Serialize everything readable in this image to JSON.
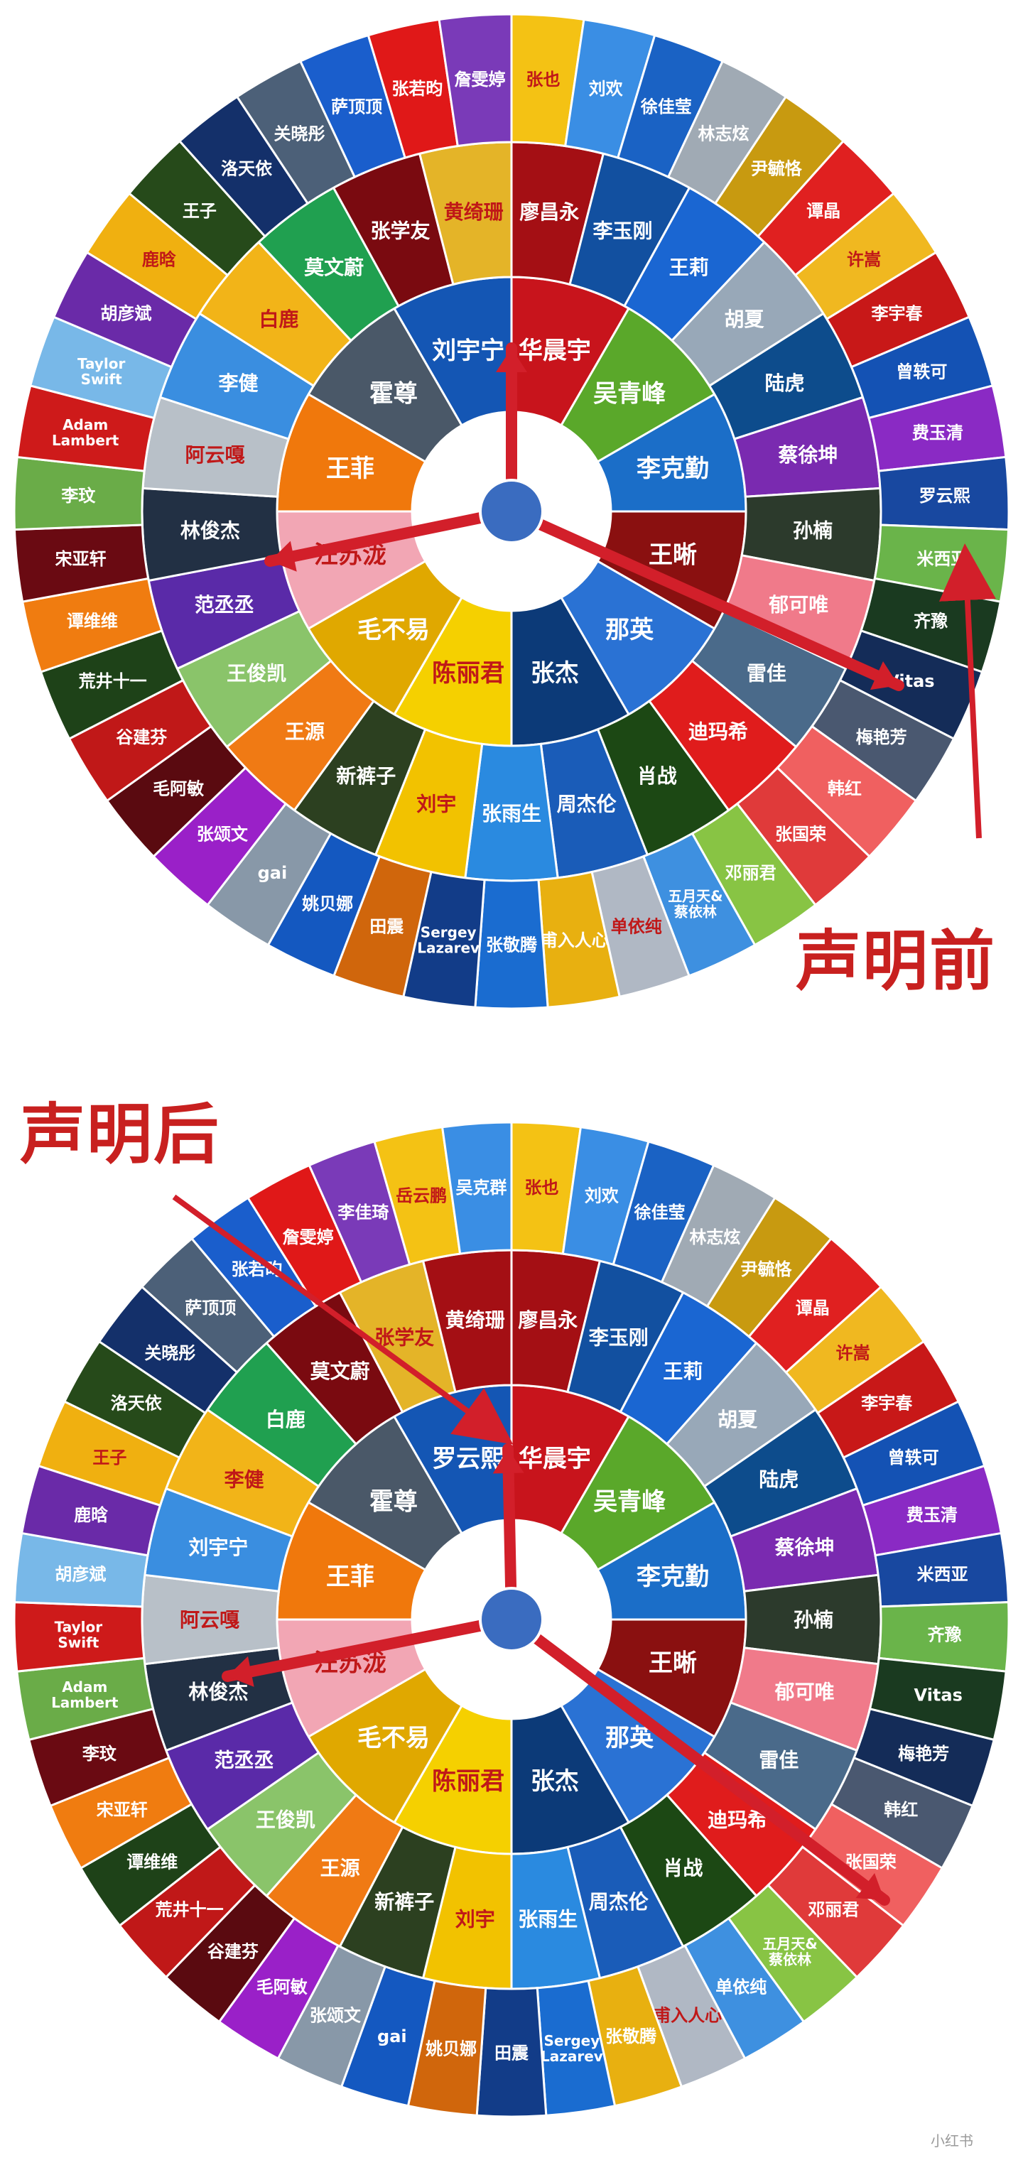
{
  "captions": {
    "before": "声明前",
    "after": "声明后"
  },
  "watermark": "小红书",
  "wheels": [
    {
      "id": "before",
      "rings": [
        [
          "华晨宇",
          "吴青峰",
          "李克勤",
          "王晰",
          "那英",
          "张杰",
          "陈丽君",
          "毛不易",
          "汪苏泷",
          "王菲",
          "霍尊",
          "刘宇宁"
        ],
        [
          "廖昌永",
          "李玉刚",
          "王莉",
          "胡夏",
          "陆虎",
          "蔡徐坤",
          "孙楠",
          "郁可唯",
          "雷佳",
          "迪玛希",
          "肖战",
          "周杰伦",
          "张雨生",
          "刘宇",
          "新裤子",
          "王源",
          "王俊凯",
          "范丞丞",
          "林俊杰",
          "阿云嘎",
          "李健",
          "白鹿",
          "莫文蔚",
          "张学友",
          "黄绮珊"
        ],
        [
          "张也",
          "刘欢",
          "徐佳莹",
          "林志炫",
          "尹毓恪",
          "谭晶",
          "许嵩",
          "李宇春",
          "曾轶可",
          "费玉清",
          "罗云熙",
          "米西亚",
          "齐豫",
          "Vitas",
          "梅艳芳",
          "韩红",
          "张国荣",
          "邓丽君",
          "五月天&\n蔡依林",
          "单依纯",
          "甫入人心",
          "张敬腾",
          "Sergey\nLazarev",
          "田震",
          "姚贝娜",
          "gai",
          "张颂文",
          "毛阿敏",
          "谷建芬",
          "荒井十一",
          "谭维维",
          "宋亚轩",
          "李玟",
          "Adam\nLambert",
          "Taylor\nSwift",
          "胡彦斌",
          "鹿晗",
          "王子",
          "洛天依",
          "关晓彤",
          "萨顶顶",
          "张若昀",
          "詹雯婷"
        ]
      ]
    },
    {
      "id": "after",
      "rings": [
        [
          "华晨宇",
          "吴青峰",
          "李克勤",
          "王晰",
          "那英",
          "张杰",
          "陈丽君",
          "毛不易",
          "汪苏泷",
          "王菲",
          "霍尊",
          "罗云熙"
        ],
        [
          "廖昌永",
          "李玉刚",
          "王莉",
          "胡夏",
          "陆虎",
          "蔡徐坤",
          "孙楠",
          "郁可唯",
          "雷佳",
          "迪玛希",
          "肖战",
          "周杰伦",
          "张雨生",
          "刘宇",
          "新裤子",
          "王源",
          "王俊凯",
          "范丞丞",
          "林俊杰",
          "阿云嘎",
          "刘宇宁",
          "李健",
          "白鹿",
          "莫文蔚",
          "张学友",
          "黄绮珊"
        ],
        [
          "张也",
          "刘欢",
          "徐佳莹",
          "林志炫",
          "尹毓恪",
          "谭晶",
          "许嵩",
          "李宇春",
          "曾轶可",
          "费玉清",
          "米西亚",
          "齐豫",
          "Vitas",
          "梅艳芳",
          "韩红",
          "张国荣",
          "邓丽君",
          "五月天&\n蔡依林",
          "单依纯",
          "甫入人心",
          "张敬腾",
          "Sergey\nLazarev",
          "田震",
          "姚贝娜",
          "gai",
          "张颂文",
          "毛阿敏",
          "谷建芬",
          "荒井十一",
          "谭维维",
          "宋亚轩",
          "李玟",
          "Adam\nLambert",
          "Taylor\nSwift",
          "胡彦斌",
          "鹿晗",
          "王子",
          "洛天依",
          "关晓彤",
          "萨顶顶",
          "张若昀",
          "詹雯婷",
          "李佳琦",
          "岳云鹏",
          "吴克群"
        ]
      ]
    }
  ],
  "colors": {
    "inner": [
      "#c8141c",
      "#5aa82a",
      "#1b6ec8",
      "#8a1010",
      "#2a72d4",
      "#0c3a78",
      "#f5d000",
      "#e0a800",
      "#f2a6b4",
      "#f0780c",
      "#4a5868",
      "#1456b4"
    ],
    "middle": [
      "#a40f14",
      "#1250a0",
      "#1a66d2",
      "#98a8b8",
      "#0d4c8c",
      "#7a2ab0",
      "#2c3a2c",
      "#f07a8a",
      "#4a6a8a",
      "#e01c1c",
      "#1c4814",
      "#1a5cb8",
      "#2a8ae0",
      "#f2c200",
      "#2c4020",
      "#f07a14",
      "#8ac46a",
      "#5a2aa8",
      "#223044",
      "#b8c0c8",
      "#3a8ee0",
      "#f2b418",
      "#20a050",
      "#7a0a10",
      "#e4b428"
    ],
    "outer": [
      "#f4c214",
      "#3a8ee4",
      "#1a62c4",
      "#a0aab4",
      "#c89a10",
      "#e02020",
      "#f0b820",
      "#c81818",
      "#1452b4",
      "#8a2ac4",
      "#1848a0",
      "#6ab44a",
      "#1a3a20",
      "#142c58",
      "#4a5870",
      "#f06060",
      "#e03a3a",
      "#88c444",
      "#3e90e0",
      "#b0b8c4",
      "#e8b010",
      "#1a6cd0",
      "#123c88",
      "#d0660c",
      "#1458c0",
      "#8898a8",
      "#9a20c8",
      "#5a0a10",
      "#c01818",
      "#1e4218",
      "#f07c10",
      "#6a0a12",
      "#6aac48",
      "#ce1a1a",
      "#78b8e8",
      "#6a2aa8",
      "#f0b010",
      "#264a1a",
      "#14306a",
      "#4c6078",
      "#1a5ecc",
      "#e01818",
      "#7a3ab8"
    ],
    "accent_red": "#d21f2a",
    "hub": "#3a6cc0"
  }
}
